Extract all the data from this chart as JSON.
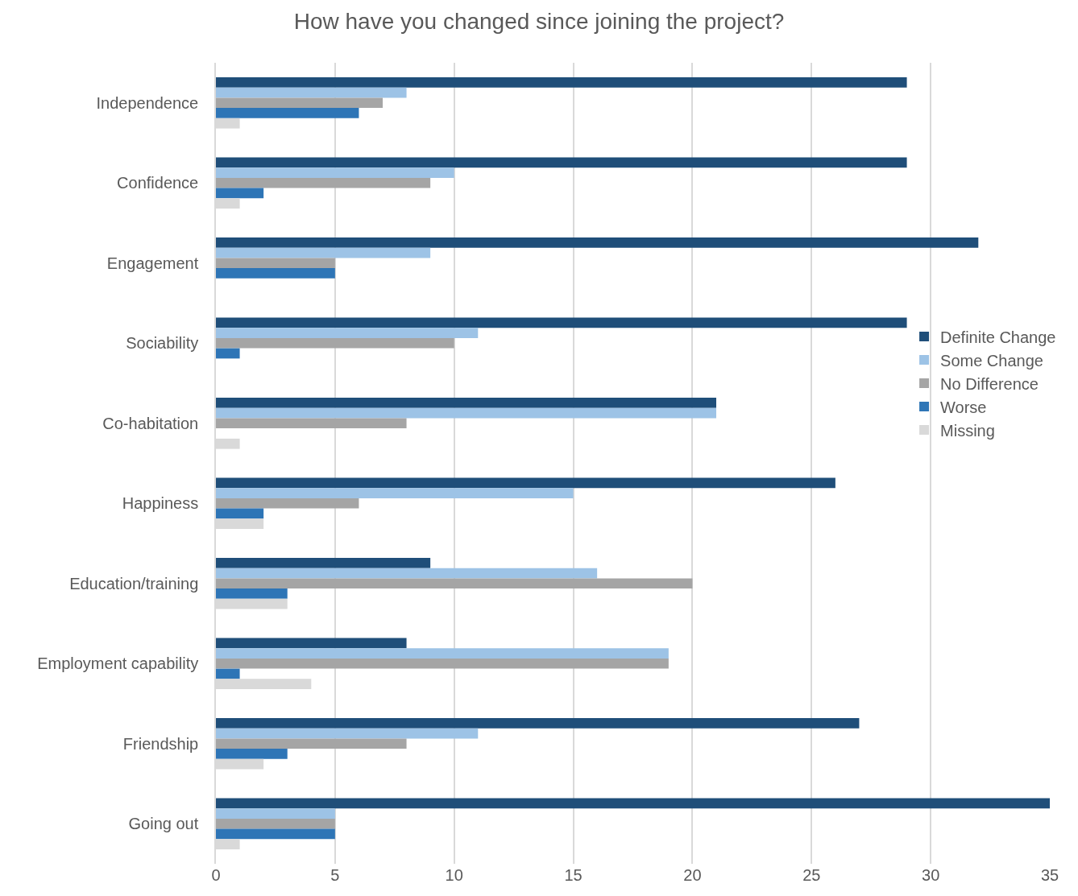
{
  "chart_data": {
    "type": "bar",
    "orientation": "horizontal",
    "title": "How have you changed since joining the project?",
    "categories": [
      "Independence",
      "Confidence",
      "Engagement",
      "Sociability",
      "Co-habitation",
      "Happiness",
      "Education/training",
      "Employment capability",
      "Friendship",
      "Going out"
    ],
    "series": [
      {
        "name": "Definite Change",
        "color": "#1f4e79",
        "values": [
          29,
          29,
          32,
          29,
          21,
          26,
          9,
          8,
          27,
          35
        ]
      },
      {
        "name": "Some Change",
        "color": "#9dc3e6",
        "values": [
          8,
          10,
          9,
          11,
          21,
          15,
          16,
          19,
          11,
          5
        ]
      },
      {
        "name": "No Difference",
        "color": "#a5a5a5",
        "values": [
          7,
          9,
          5,
          10,
          8,
          6,
          20,
          19,
          8,
          5
        ]
      },
      {
        "name": "Worse",
        "color": "#2e75b6",
        "values": [
          6,
          2,
          5,
          1,
          0,
          2,
          3,
          1,
          3,
          5
        ]
      },
      {
        "name": "Missing",
        "color": "#d9d9d9",
        "values": [
          1,
          1,
          0,
          0,
          1,
          2,
          3,
          4,
          2,
          1
        ]
      }
    ],
    "xlim": [
      0,
      35
    ],
    "xticks": [
      0,
      5,
      10,
      15,
      20,
      25,
      30,
      35
    ],
    "grid": "x",
    "legend": "right"
  }
}
